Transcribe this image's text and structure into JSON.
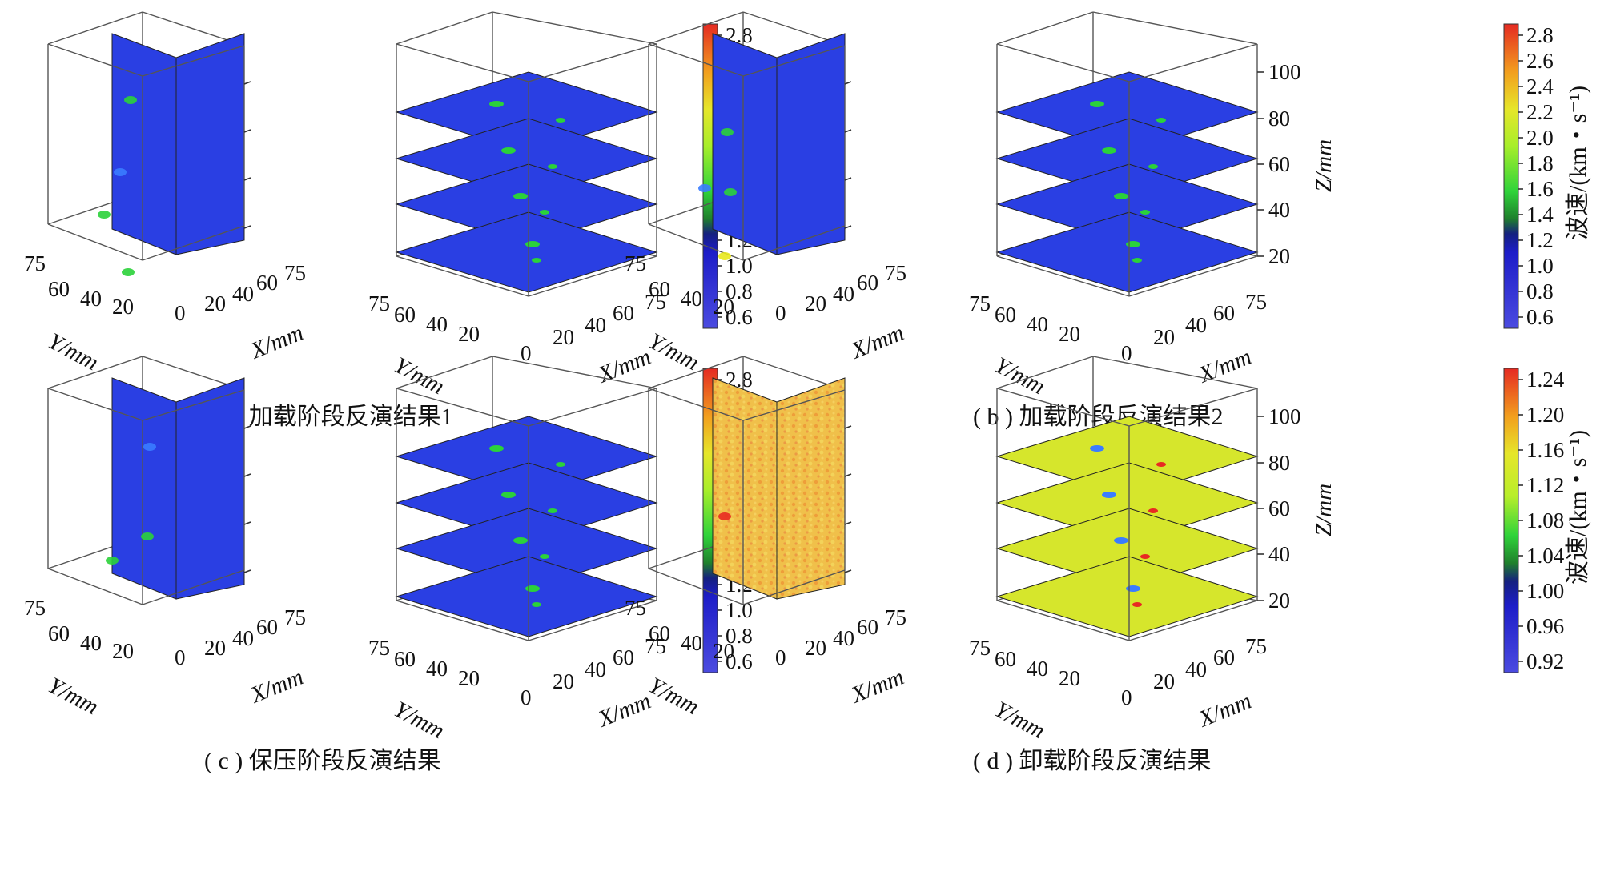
{
  "colormap": [
    "#4545d6",
    "#2b3be6",
    "#1c1cbe",
    "#3a7cff",
    "#2bd23a",
    "#b8f028",
    "#e8e81c",
    "#f5a21c",
    "#e82a22"
  ],
  "panels": [
    {
      "caption": "( a ) 加载阶段反演结果1",
      "colorbar": {
        "ticks": [
          "2.8",
          "2.6",
          "2.4",
          "2.2",
          "2.0",
          "1.8",
          "1.6",
          "1.4",
          "1.2",
          "1.0",
          "0.8",
          "0.6"
        ],
        "show_label": false,
        "show_z_axis": false
      },
      "slice_color": "#2a3fe3",
      "left_cube": {
        "kind": "orthogonal"
      },
      "right_cube": {
        "kind": "horizontal"
      }
    },
    {
      "caption": "( b ) 加载阶段反演结果2",
      "colorbar": {
        "ticks": [
          "2.8",
          "2.6",
          "2.4",
          "2.2",
          "2.0",
          "1.8",
          "1.6",
          "1.4",
          "1.2",
          "1.0",
          "0.8",
          "0.6"
        ],
        "show_label": true,
        "show_z_axis": true
      },
      "slice_color": "#2a3fe3",
      "left_cube": {
        "kind": "orthogonal"
      },
      "right_cube": {
        "kind": "horizontal"
      }
    },
    {
      "caption": "( c ) 保压阶段反演结果",
      "colorbar": {
        "ticks": [
          "2.8",
          "2.6",
          "2.4",
          "2.2",
          "2.0",
          "1.8",
          "1.6",
          "1.4",
          "1.2",
          "1.0",
          "0.8",
          "0.6"
        ],
        "show_label": false,
        "show_z_axis": false
      },
      "slice_color": "#2a3fe3",
      "left_cube": {
        "kind": "orthogonal"
      },
      "right_cube": {
        "kind": "horizontal"
      }
    },
    {
      "caption": "( d ) 卸载阶段反演结果",
      "colorbar": {
        "ticks": [
          "1.24",
          "1.20",
          "1.16",
          "1.12",
          "1.08",
          "1.04",
          "1.00",
          "0.96",
          "0.92"
        ],
        "show_label": true,
        "show_z_axis": true
      },
      "slice_color_orthogonal": "#f2c14a",
      "slice_color": "#d6e62c",
      "left_cube": {
        "kind": "orthogonal"
      },
      "right_cube": {
        "kind": "horizontal"
      }
    }
  ],
  "axes": {
    "y_title": "Y/mm",
    "x_title": "X/mm",
    "z_title": "Z/mm",
    "y_ticks": [
      "75",
      "60",
      "40",
      "20"
    ],
    "x_ticks": [
      "0",
      "20",
      "40",
      "60",
      "75"
    ],
    "z_ticks": [
      "100",
      "80",
      "60",
      "40",
      "20"
    ]
  },
  "colorbar_label": "波速/(km・s⁻¹)",
  "chart_data": [
    {
      "type": "heatmap",
      "caption": "( a ) 加载阶段反演结果1",
      "colorbar_range": [
        0.6,
        2.9
      ],
      "colorbar_ticks": [
        2.8,
        2.6,
        2.4,
        2.2,
        2.0,
        1.8,
        1.6,
        1.4,
        1.2,
        1.0,
        0.8,
        0.6
      ],
      "axes": {
        "x": "X/mm",
        "y": "Y/mm",
        "x_range": [
          0,
          75
        ],
        "y_range": [
          0,
          75
        ]
      }
    },
    {
      "type": "heatmap",
      "caption": "( b ) 加载阶段反演结果2",
      "colorbar_range": [
        0.6,
        2.9
      ],
      "colorbar_ticks": [
        2.8,
        2.6,
        2.4,
        2.2,
        2.0,
        1.8,
        1.6,
        1.4,
        1.2,
        1.0,
        0.8,
        0.6
      ],
      "colorbar_label": "波速/(km・s⁻¹)",
      "axes": {
        "x": "X/mm",
        "y": "Y/mm",
        "z": "Z/mm",
        "x_range": [
          0,
          75
        ],
        "y_range": [
          0,
          75
        ],
        "z_ticks": [
          20,
          40,
          60,
          80,
          100
        ]
      }
    },
    {
      "type": "heatmap",
      "caption": "( c ) 保压阶段反演结果",
      "colorbar_range": [
        0.6,
        2.9
      ],
      "colorbar_ticks": [
        2.8,
        2.6,
        2.4,
        2.2,
        2.0,
        1.8,
        1.6,
        1.4,
        1.2,
        1.0,
        0.8,
        0.6
      ],
      "axes": {
        "x": "X/mm",
        "y": "Y/mm",
        "x_range": [
          0,
          75
        ],
        "y_range": [
          0,
          75
        ]
      }
    },
    {
      "type": "heatmap",
      "caption": "( d ) 卸载阶段反演结果",
      "colorbar_range": [
        0.9,
        1.26
      ],
      "colorbar_ticks": [
        1.24,
        1.2,
        1.16,
        1.12,
        1.08,
        1.04,
        1.0,
        0.96,
        0.92
      ],
      "colorbar_label": "波速/(km・s⁻¹)",
      "axes": {
        "x": "X/mm",
        "y": "Y/mm",
        "z": "Z/mm",
        "x_range": [
          0,
          75
        ],
        "y_range": [
          0,
          75
        ],
        "z_ticks": [
          20,
          40,
          60,
          80,
          100
        ]
      }
    }
  ]
}
